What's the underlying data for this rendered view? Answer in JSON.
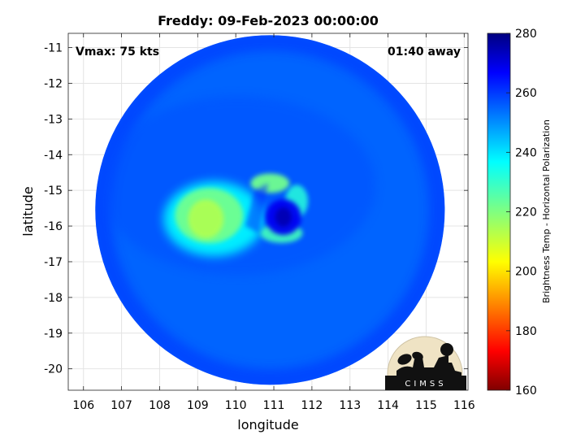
{
  "chart_data": {
    "type": "heatmap",
    "title": "Freddy: 09-Feb-2023 00:00:00",
    "xlabel": "longitude",
    "ylabel": "latitude",
    "xlim": [
      105.6,
      116.1
    ],
    "ylim": [
      -20.6,
      -10.6
    ],
    "xticks": [
      "106",
      "107",
      "108",
      "109",
      "110",
      "111",
      "112",
      "113",
      "114",
      "115",
      "116"
    ],
    "yticks": [
      "-11",
      "-12",
      "-13",
      "-14",
      "-15",
      "-16",
      "-17",
      "-18",
      "-19",
      "-20"
    ],
    "grid": true,
    "swath": {
      "center_lon": 110.9,
      "center_lat": -15.55,
      "radius_deg": 4.9
    },
    "features": [
      {
        "name": "background",
        "value": 255,
        "shape": "disk"
      },
      {
        "name": "outer band",
        "value": 261,
        "shape": "ring"
      },
      {
        "name": "western convection",
        "value": 214,
        "lon": 109.3,
        "lat": -15.8
      },
      {
        "name": "northern eyewall",
        "value": 222,
        "lon": 110.9,
        "lat": -14.8
      },
      {
        "name": "southern eyewall",
        "value": 228,
        "lon": 111.2,
        "lat": -16.2
      },
      {
        "name": "eye",
        "value": 268,
        "lon": 111.25,
        "lat": -15.75
      }
    ],
    "annotations": {
      "vmax": "Vmax: 75 kts",
      "time_offset": "01:40 away"
    },
    "colorbar": {
      "label": "Brightness Temp - Horizontal Polarization",
      "range": [
        160,
        280
      ],
      "ticks": [
        "280",
        "260",
        "240",
        "220",
        "200",
        "180",
        "160"
      ],
      "colormap": "jet"
    }
  },
  "logo": {
    "text": "CIMSS"
  }
}
